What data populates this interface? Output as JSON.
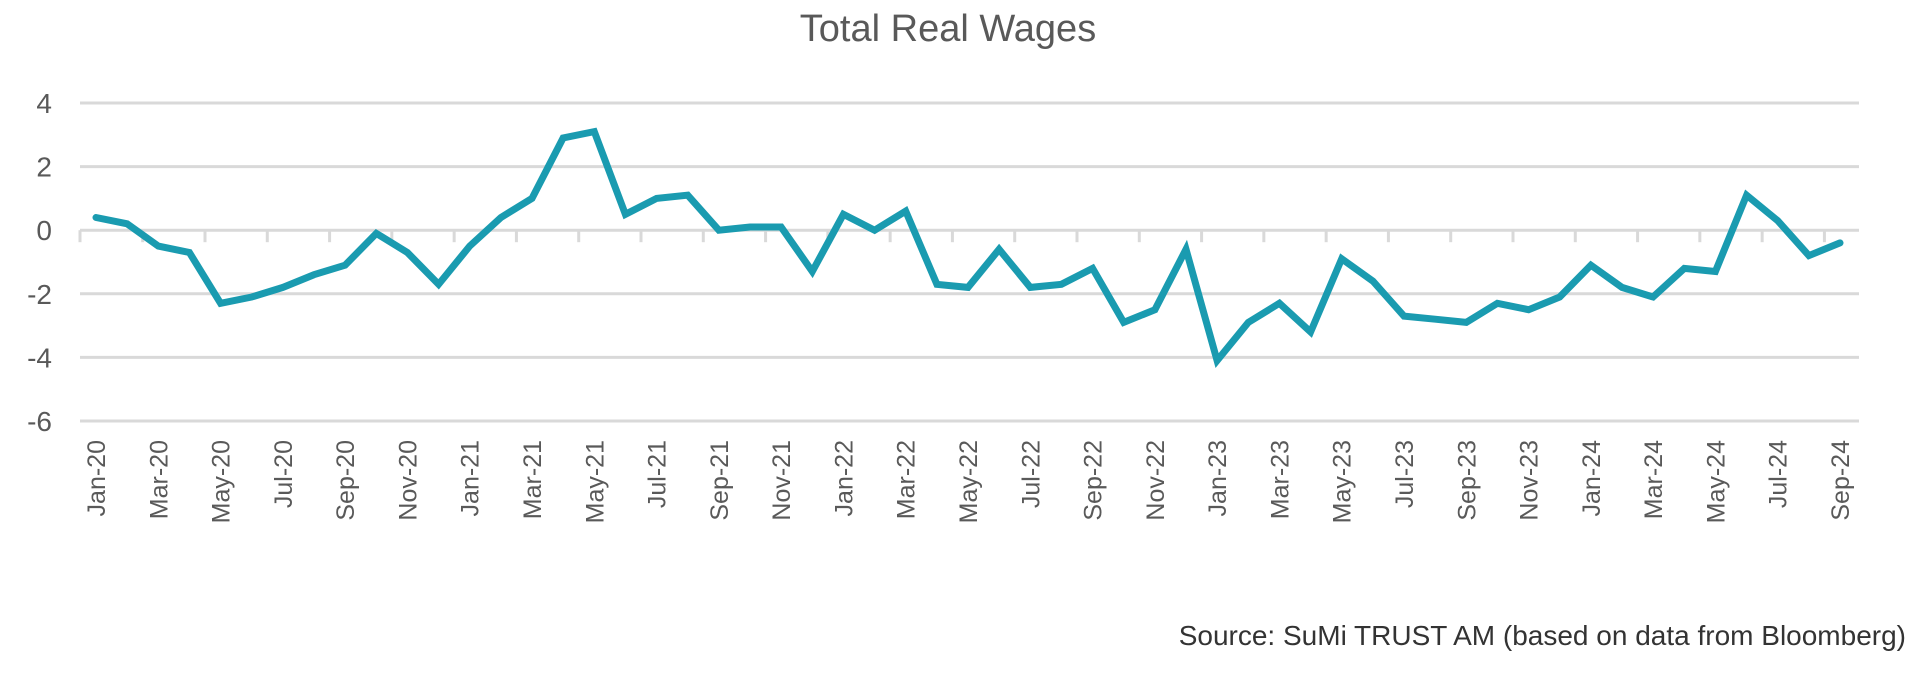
{
  "chart_data": {
    "type": "line",
    "title": "Total Real Wages",
    "xlabel": "",
    "ylabel": "",
    "ylim": [
      -6,
      4
    ],
    "yticks": [
      4,
      2,
      0,
      -2,
      -4,
      -6
    ],
    "grid": true,
    "line_color": "#1A9BB0",
    "x": [
      "Jan-20",
      "Feb-20",
      "Mar-20",
      "Apr-20",
      "May-20",
      "Jun-20",
      "Jul-20",
      "Aug-20",
      "Sep-20",
      "Oct-20",
      "Nov-20",
      "Dec-20",
      "Jan-21",
      "Feb-21",
      "Mar-21",
      "Apr-21",
      "May-21",
      "Jun-21",
      "Jul-21",
      "Aug-21",
      "Sep-21",
      "Oct-21",
      "Nov-21",
      "Dec-21",
      "Jan-22",
      "Feb-22",
      "Mar-22",
      "Apr-22",
      "May-22",
      "Jun-22",
      "Jul-22",
      "Aug-22",
      "Sep-22",
      "Oct-22",
      "Nov-22",
      "Dec-22",
      "Jan-23",
      "Feb-23",
      "Mar-23",
      "Apr-23",
      "May-23",
      "Jun-23",
      "Jul-23",
      "Aug-23",
      "Sep-23",
      "Oct-23",
      "Nov-23",
      "Dec-23",
      "Jan-24",
      "Feb-24",
      "Mar-24",
      "Apr-24",
      "May-24",
      "Jun-24",
      "Jul-24",
      "Aug-24",
      "Sep-24"
    ],
    "values": [
      0.4,
      0.2,
      -0.5,
      -0.7,
      -2.3,
      -2.1,
      -1.8,
      -1.4,
      -1.1,
      -0.1,
      -0.7,
      -1.7,
      -0.5,
      0.4,
      1.0,
      2.9,
      3.1,
      0.5,
      1.0,
      1.1,
      0.0,
      0.1,
      0.1,
      -1.3,
      0.5,
      0.0,
      0.6,
      -1.7,
      -1.8,
      -0.6,
      -1.8,
      -1.7,
      -1.2,
      -2.9,
      -2.5,
      -0.6,
      -4.1,
      -2.9,
      -2.3,
      -3.2,
      -0.9,
      -1.6,
      -2.7,
      -2.8,
      -2.9,
      -2.3,
      -2.5,
      -2.1,
      -1.1,
      -1.8,
      -2.1,
      -1.2,
      -1.3,
      1.1,
      0.3,
      -0.8,
      -0.4
    ],
    "source": "Source: SuMi TRUST AM (based on data from Bloomberg)"
  }
}
